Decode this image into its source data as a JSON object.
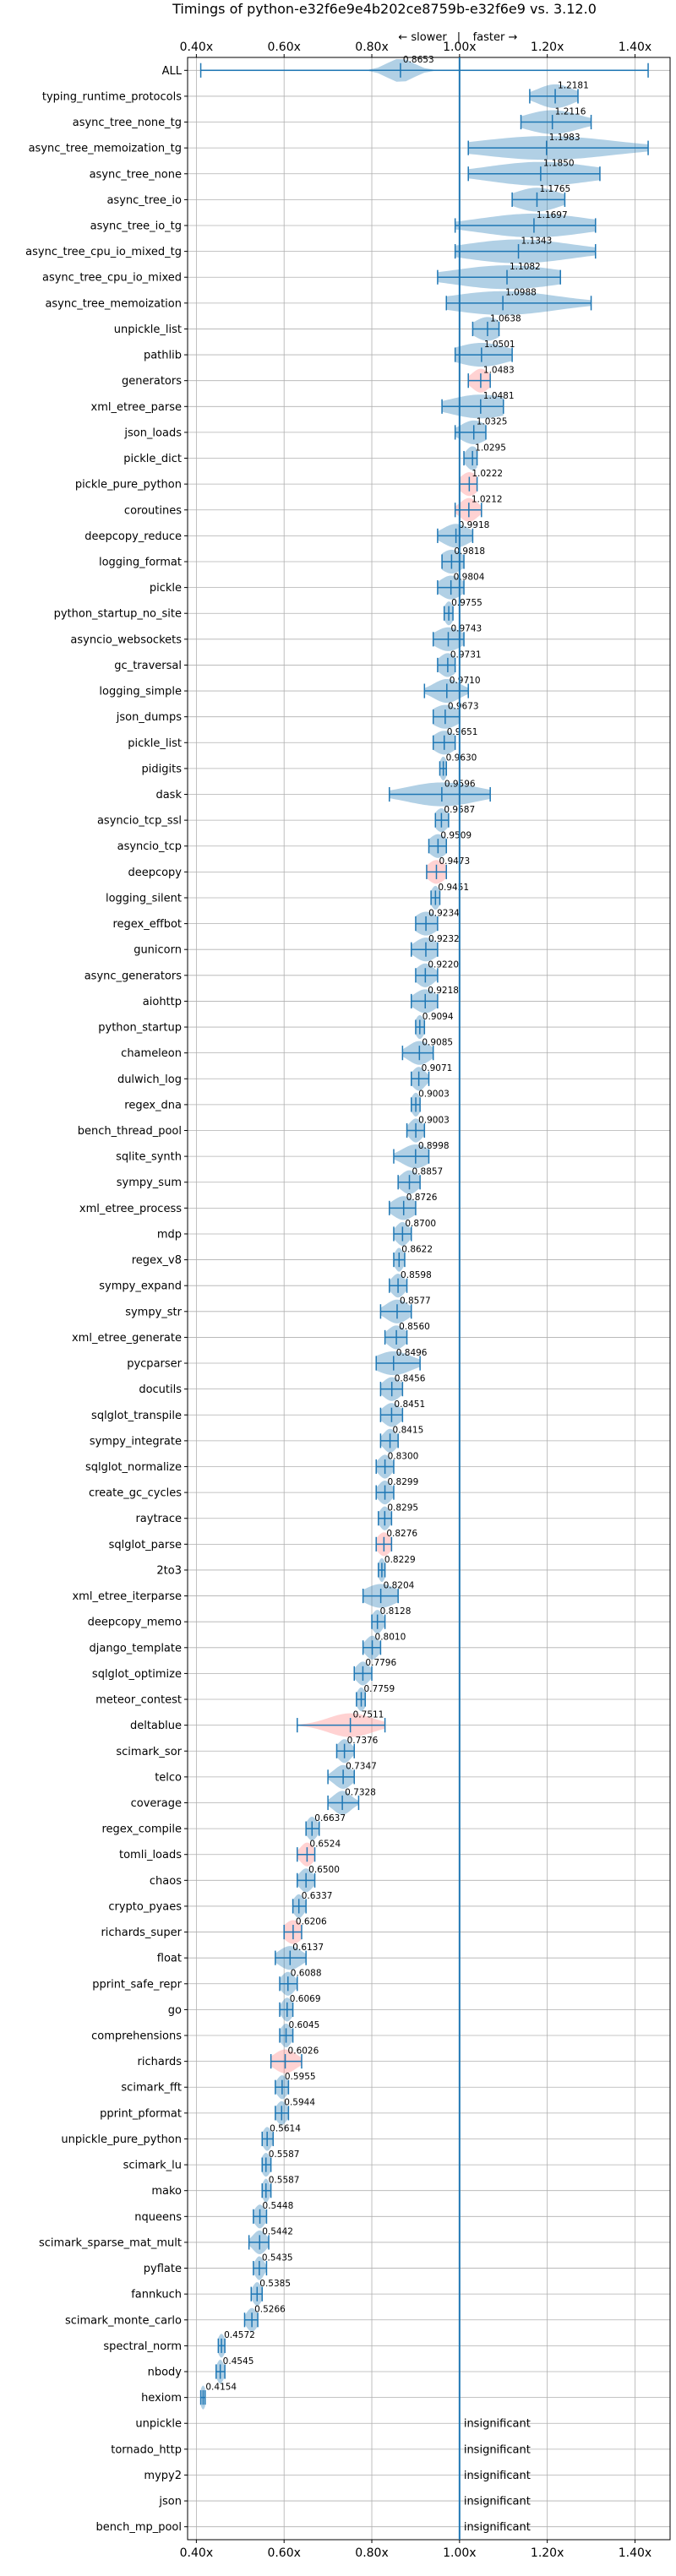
{
  "chart_data": {
    "type": "violin",
    "title": "Timings of python-e32f6e9e4b202ce8759b-e32f6e9 vs. 3.12.0",
    "direction_labels": {
      "slower": "← slower",
      "separator": "|",
      "faster": "faster →"
    },
    "x_ticks": [
      "0.40x",
      "0.60x",
      "0.80x",
      "1.00x",
      "1.20x",
      "1.40x"
    ],
    "x_tick_values": [
      0.4,
      0.6,
      0.8,
      1.0,
      1.2,
      1.4
    ],
    "xlim": [
      0.38,
      1.48
    ],
    "grid": true,
    "colors": {
      "faster": "#1f77b4",
      "slower": "#ff7f7f",
      "reference": "#1f77b4"
    },
    "insignificant_text": "insignificant",
    "benchmarks": [
      {
        "name": "ALL",
        "value": 0.8653,
        "label": "0.8653",
        "min": 0.41,
        "max": 1.43,
        "spread": 0.03,
        "color": "blue"
      },
      {
        "name": "typing_runtime_protocols",
        "value": 1.2181,
        "label": "1.2181",
        "min": 1.16,
        "max": 1.27,
        "spread": 0.04,
        "color": "blue"
      },
      {
        "name": "async_tree_none_tg",
        "value": 1.2116,
        "label": "1.2116",
        "min": 1.14,
        "max": 1.3,
        "spread": 0.06,
        "color": "blue"
      },
      {
        "name": "async_tree_memoization_tg",
        "value": 1.1983,
        "label": "1.1983",
        "min": 1.02,
        "max": 1.43,
        "spread": 0.15,
        "color": "blue"
      },
      {
        "name": "async_tree_none",
        "value": 1.185,
        "label": "1.1850",
        "min": 1.02,
        "max": 1.32,
        "spread": 0.12,
        "color": "blue"
      },
      {
        "name": "async_tree_io",
        "value": 1.1765,
        "label": "1.1765",
        "min": 1.12,
        "max": 1.24,
        "spread": 0.05,
        "color": "blue"
      },
      {
        "name": "async_tree_io_tg",
        "value": 1.1697,
        "label": "1.1697",
        "min": 0.99,
        "max": 1.31,
        "spread": 0.12,
        "color": "blue"
      },
      {
        "name": "async_tree_cpu_io_mixed_tg",
        "value": 1.1343,
        "label": "1.1343",
        "min": 0.99,
        "max": 1.31,
        "spread": 0.12,
        "color": "blue"
      },
      {
        "name": "async_tree_cpu_io_mixed",
        "value": 1.1082,
        "label": "1.1082",
        "min": 0.95,
        "max": 1.23,
        "spread": 0.12,
        "color": "blue"
      },
      {
        "name": "async_tree_memoization",
        "value": 1.0988,
        "label": "1.0988",
        "min": 0.97,
        "max": 1.3,
        "spread": 0.12,
        "color": "blue"
      },
      {
        "name": "unpickle_list",
        "value": 1.0638,
        "label": "1.0638",
        "min": 1.03,
        "max": 1.09,
        "spread": 0.03,
        "color": "blue"
      },
      {
        "name": "pathlib",
        "value": 1.0501,
        "label": "1.0501",
        "min": 0.99,
        "max": 1.12,
        "spread": 0.06,
        "color": "blue"
      },
      {
        "name": "generators",
        "value": 1.0483,
        "label": "1.0483",
        "min": 1.02,
        "max": 1.07,
        "spread": 0.02,
        "color": "red"
      },
      {
        "name": "xml_etree_parse",
        "value": 1.0481,
        "label": "1.0481",
        "min": 0.96,
        "max": 1.1,
        "spread": 0.07,
        "color": "blue"
      },
      {
        "name": "json_loads",
        "value": 1.0325,
        "label": "1.0325",
        "min": 0.99,
        "max": 1.06,
        "spread": 0.03,
        "color": "blue"
      },
      {
        "name": "pickle_dict",
        "value": 1.0295,
        "label": "1.0295",
        "min": 1.01,
        "max": 1.04,
        "spread": 0.015,
        "color": "blue"
      },
      {
        "name": "pickle_pure_python",
        "value": 1.0222,
        "label": "1.0222",
        "min": 1.0,
        "max": 1.04,
        "spread": 0.02,
        "color": "red"
      },
      {
        "name": "coroutines",
        "value": 1.0212,
        "label": "1.0212",
        "min": 0.99,
        "max": 1.05,
        "spread": 0.02,
        "color": "red"
      },
      {
        "name": "deepcopy_reduce",
        "value": 0.9918,
        "label": "0.9918",
        "min": 0.95,
        "max": 1.03,
        "spread": 0.03,
        "color": "blue"
      },
      {
        "name": "logging_format",
        "value": 0.9818,
        "label": "0.9818",
        "min": 0.96,
        "max": 1.01,
        "spread": 0.025,
        "color": "blue"
      },
      {
        "name": "pickle",
        "value": 0.9804,
        "label": "0.9804",
        "min": 0.95,
        "max": 1.01,
        "spread": 0.025,
        "color": "blue"
      },
      {
        "name": "python_startup_no_site",
        "value": 0.9755,
        "label": "0.9755",
        "min": 0.965,
        "max": 0.985,
        "spread": 0.01,
        "color": "blue"
      },
      {
        "name": "asyncio_websockets",
        "value": 0.9743,
        "label": "0.9743",
        "min": 0.94,
        "max": 1.01,
        "spread": 0.03,
        "color": "blue"
      },
      {
        "name": "gc_traversal",
        "value": 0.9731,
        "label": "0.9731",
        "min": 0.95,
        "max": 0.99,
        "spread": 0.02,
        "color": "blue"
      },
      {
        "name": "logging_simple",
        "value": 0.971,
        "label": "0.9710",
        "min": 0.92,
        "max": 1.02,
        "spread": 0.03,
        "color": "blue"
      },
      {
        "name": "json_dumps",
        "value": 0.9673,
        "label": "0.9673",
        "min": 0.94,
        "max": 1.0,
        "spread": 0.03,
        "color": "blue"
      },
      {
        "name": "pickle_list",
        "value": 0.9651,
        "label": "0.9651",
        "min": 0.94,
        "max": 0.99,
        "spread": 0.025,
        "color": "blue"
      },
      {
        "name": "pidigits",
        "value": 0.963,
        "label": "0.9630",
        "min": 0.955,
        "max": 0.97,
        "spread": 0.008,
        "color": "blue"
      },
      {
        "name": "dask",
        "value": 0.9596,
        "label": "0.9596",
        "min": 0.84,
        "max": 1.07,
        "spread": 0.08,
        "color": "blue"
      },
      {
        "name": "asyncio_tcp_ssl",
        "value": 0.9587,
        "label": "0.9587",
        "min": 0.945,
        "max": 0.975,
        "spread": 0.015,
        "color": "blue"
      },
      {
        "name": "asyncio_tcp",
        "value": 0.9509,
        "label": "0.9509",
        "min": 0.93,
        "max": 0.97,
        "spread": 0.02,
        "color": "blue"
      },
      {
        "name": "deepcopy",
        "value": 0.9473,
        "label": "0.9473",
        "min": 0.925,
        "max": 0.97,
        "spread": 0.02,
        "color": "red"
      },
      {
        "name": "logging_silent",
        "value": 0.9451,
        "label": "0.9451",
        "min": 0.935,
        "max": 0.955,
        "spread": 0.01,
        "color": "blue"
      },
      {
        "name": "regex_effbot",
        "value": 0.9234,
        "label": "0.9234",
        "min": 0.9,
        "max": 0.95,
        "spread": 0.025,
        "color": "blue"
      },
      {
        "name": "gunicorn",
        "value": 0.9232,
        "label": "0.9232",
        "min": 0.89,
        "max": 0.95,
        "spread": 0.025,
        "color": "blue"
      },
      {
        "name": "async_generators",
        "value": 0.922,
        "label": "0.9220",
        "min": 0.9,
        "max": 0.95,
        "spread": 0.02,
        "color": "blue"
      },
      {
        "name": "aiohttp",
        "value": 0.9218,
        "label": "0.9218",
        "min": 0.89,
        "max": 0.95,
        "spread": 0.025,
        "color": "blue"
      },
      {
        "name": "python_startup",
        "value": 0.9094,
        "label": "0.9094",
        "min": 0.9,
        "max": 0.92,
        "spread": 0.01,
        "color": "blue"
      },
      {
        "name": "chameleon",
        "value": 0.9085,
        "label": "0.9085",
        "min": 0.87,
        "max": 0.94,
        "spread": 0.025,
        "color": "blue"
      },
      {
        "name": "dulwich_log",
        "value": 0.9071,
        "label": "0.9071",
        "min": 0.89,
        "max": 0.93,
        "spread": 0.015,
        "color": "blue"
      },
      {
        "name": "regex_dna",
        "value": 0.9003,
        "label": "0.9003",
        "min": 0.89,
        "max": 0.91,
        "spread": 0.01,
        "color": "blue"
      },
      {
        "name": "bench_thread_pool",
        "value": 0.9003,
        "label": "0.9003",
        "min": 0.88,
        "max": 0.92,
        "spread": 0.015,
        "color": "blue"
      },
      {
        "name": "sqlite_synth",
        "value": 0.8998,
        "label": "0.8998",
        "min": 0.85,
        "max": 0.93,
        "spread": 0.03,
        "color": "blue"
      },
      {
        "name": "sympy_sum",
        "value": 0.8857,
        "label": "0.8857",
        "min": 0.86,
        "max": 0.91,
        "spread": 0.02,
        "color": "blue"
      },
      {
        "name": "xml_etree_process",
        "value": 0.8726,
        "label": "0.8726",
        "min": 0.84,
        "max": 0.9,
        "spread": 0.025,
        "color": "blue"
      },
      {
        "name": "mdp",
        "value": 0.87,
        "label": "0.8700",
        "min": 0.85,
        "max": 0.89,
        "spread": 0.015,
        "color": "blue"
      },
      {
        "name": "regex_v8",
        "value": 0.8622,
        "label": "0.8622",
        "min": 0.85,
        "max": 0.875,
        "spread": 0.01,
        "color": "blue"
      },
      {
        "name": "sympy_expand",
        "value": 0.8598,
        "label": "0.8598",
        "min": 0.84,
        "max": 0.88,
        "spread": 0.015,
        "color": "blue"
      },
      {
        "name": "sympy_str",
        "value": 0.8577,
        "label": "0.8577",
        "min": 0.82,
        "max": 0.89,
        "spread": 0.025,
        "color": "blue"
      },
      {
        "name": "xml_etree_generate",
        "value": 0.856,
        "label": "0.8560",
        "min": 0.83,
        "max": 0.88,
        "spread": 0.02,
        "color": "blue"
      },
      {
        "name": "pycparser",
        "value": 0.8496,
        "label": "0.8496",
        "min": 0.81,
        "max": 0.91,
        "spread": 0.04,
        "color": "blue"
      },
      {
        "name": "docutils",
        "value": 0.8456,
        "label": "0.8456",
        "min": 0.82,
        "max": 0.87,
        "spread": 0.02,
        "color": "blue"
      },
      {
        "name": "sqlglot_transpile",
        "value": 0.8451,
        "label": "0.8451",
        "min": 0.82,
        "max": 0.87,
        "spread": 0.02,
        "color": "blue"
      },
      {
        "name": "sympy_integrate",
        "value": 0.8415,
        "label": "0.8415",
        "min": 0.82,
        "max": 0.86,
        "spread": 0.015,
        "color": "blue"
      },
      {
        "name": "sqlglot_normalize",
        "value": 0.83,
        "label": "0.8300",
        "min": 0.81,
        "max": 0.85,
        "spread": 0.015,
        "color": "blue"
      },
      {
        "name": "create_gc_cycles",
        "value": 0.8299,
        "label": "0.8299",
        "min": 0.81,
        "max": 0.85,
        "spread": 0.015,
        "color": "blue"
      },
      {
        "name": "raytrace",
        "value": 0.8295,
        "label": "0.8295",
        "min": 0.815,
        "max": 0.845,
        "spread": 0.012,
        "color": "blue"
      },
      {
        "name": "sqlglot_parse",
        "value": 0.8276,
        "label": "0.8276",
        "min": 0.81,
        "max": 0.845,
        "spread": 0.015,
        "color": "red"
      },
      {
        "name": "2to3",
        "value": 0.8229,
        "label": "0.8229",
        "min": 0.815,
        "max": 0.83,
        "spread": 0.008,
        "color": "blue"
      },
      {
        "name": "xml_etree_iterparse",
        "value": 0.8204,
        "label": "0.8204",
        "min": 0.78,
        "max": 0.86,
        "spread": 0.035,
        "color": "blue"
      },
      {
        "name": "deepcopy_memo",
        "value": 0.8128,
        "label": "0.8128",
        "min": 0.8,
        "max": 0.83,
        "spread": 0.012,
        "color": "blue"
      },
      {
        "name": "django_template",
        "value": 0.801,
        "label": "0.8010",
        "min": 0.78,
        "max": 0.82,
        "spread": 0.015,
        "color": "blue"
      },
      {
        "name": "sqlglot_optimize",
        "value": 0.7796,
        "label": "0.7796",
        "min": 0.76,
        "max": 0.8,
        "spread": 0.015,
        "color": "blue"
      },
      {
        "name": "meteor_contest",
        "value": 0.7759,
        "label": "0.7759",
        "min": 0.765,
        "max": 0.785,
        "spread": 0.01,
        "color": "blue"
      },
      {
        "name": "deltablue",
        "value": 0.7511,
        "label": "0.7511",
        "min": 0.63,
        "max": 0.83,
        "spread": 0.05,
        "color": "red"
      },
      {
        "name": "scimark_sor",
        "value": 0.7376,
        "label": "0.7376",
        "min": 0.72,
        "max": 0.76,
        "spread": 0.015,
        "color": "blue"
      },
      {
        "name": "telco",
        "value": 0.7347,
        "label": "0.7347",
        "min": 0.7,
        "max": 0.76,
        "spread": 0.02,
        "color": "blue"
      },
      {
        "name": "coverage",
        "value": 0.7328,
        "label": "0.7328",
        "min": 0.7,
        "max": 0.77,
        "spread": 0.02,
        "color": "blue"
      },
      {
        "name": "regex_compile",
        "value": 0.6637,
        "label": "0.6637",
        "min": 0.65,
        "max": 0.68,
        "spread": 0.012,
        "color": "blue"
      },
      {
        "name": "tomli_loads",
        "value": 0.6524,
        "label": "0.6524",
        "min": 0.63,
        "max": 0.67,
        "spread": 0.015,
        "color": "red"
      },
      {
        "name": "chaos",
        "value": 0.65,
        "label": "0.6500",
        "min": 0.63,
        "max": 0.67,
        "spread": 0.015,
        "color": "blue"
      },
      {
        "name": "crypto_pyaes",
        "value": 0.6337,
        "label": "0.6337",
        "min": 0.62,
        "max": 0.65,
        "spread": 0.012,
        "color": "blue"
      },
      {
        "name": "richards_super",
        "value": 0.6206,
        "label": "0.6206",
        "min": 0.6,
        "max": 0.64,
        "spread": 0.02,
        "color": "red"
      },
      {
        "name": "float",
        "value": 0.6137,
        "label": "0.6137",
        "min": 0.58,
        "max": 0.65,
        "spread": 0.025,
        "color": "blue"
      },
      {
        "name": "pprint_safe_repr",
        "value": 0.6088,
        "label": "0.6088",
        "min": 0.59,
        "max": 0.63,
        "spread": 0.015,
        "color": "blue"
      },
      {
        "name": "go",
        "value": 0.6069,
        "label": "0.6069",
        "min": 0.59,
        "max": 0.62,
        "spread": 0.012,
        "color": "blue"
      },
      {
        "name": "comprehensions",
        "value": 0.6045,
        "label": "0.6045",
        "min": 0.59,
        "max": 0.62,
        "spread": 0.012,
        "color": "blue"
      },
      {
        "name": "richards",
        "value": 0.6026,
        "label": "0.6026",
        "min": 0.57,
        "max": 0.64,
        "spread": 0.025,
        "color": "red"
      },
      {
        "name": "scimark_fft",
        "value": 0.5955,
        "label": "0.5955",
        "min": 0.58,
        "max": 0.61,
        "spread": 0.012,
        "color": "blue"
      },
      {
        "name": "pprint_pformat",
        "value": 0.5944,
        "label": "0.5944",
        "min": 0.58,
        "max": 0.61,
        "spread": 0.012,
        "color": "blue"
      },
      {
        "name": "unpickle_pure_python",
        "value": 0.5614,
        "label": "0.5614",
        "min": 0.55,
        "max": 0.575,
        "spread": 0.01,
        "color": "blue"
      },
      {
        "name": "scimark_lu",
        "value": 0.5587,
        "label": "0.5587",
        "min": 0.55,
        "max": 0.57,
        "spread": 0.01,
        "color": "blue"
      },
      {
        "name": "mako",
        "value": 0.5587,
        "label": "0.5587",
        "min": 0.55,
        "max": 0.57,
        "spread": 0.008,
        "color": "blue"
      },
      {
        "name": "nqueens",
        "value": 0.5448,
        "label": "0.5448",
        "min": 0.53,
        "max": 0.56,
        "spread": 0.012,
        "color": "blue"
      },
      {
        "name": "scimark_sparse_mat_mult",
        "value": 0.5442,
        "label": "0.5442",
        "min": 0.52,
        "max": 0.565,
        "spread": 0.015,
        "color": "blue"
      },
      {
        "name": "pyflate",
        "value": 0.5435,
        "label": "0.5435",
        "min": 0.53,
        "max": 0.56,
        "spread": 0.01,
        "color": "blue"
      },
      {
        "name": "fannkuch",
        "value": 0.5385,
        "label": "0.5385",
        "min": 0.525,
        "max": 0.55,
        "spread": 0.01,
        "color": "blue"
      },
      {
        "name": "scimark_monte_carlo",
        "value": 0.5266,
        "label": "0.5266",
        "min": 0.51,
        "max": 0.54,
        "spread": 0.012,
        "color": "blue"
      },
      {
        "name": "spectral_norm",
        "value": 0.4572,
        "label": "0.4572",
        "min": 0.45,
        "max": 0.465,
        "spread": 0.008,
        "color": "blue"
      },
      {
        "name": "nbody",
        "value": 0.4545,
        "label": "0.4545",
        "min": 0.445,
        "max": 0.465,
        "spread": 0.008,
        "color": "blue"
      },
      {
        "name": "hexiom",
        "value": 0.4154,
        "label": "0.4154",
        "min": 0.41,
        "max": 0.42,
        "spread": 0.006,
        "color": "blue"
      },
      {
        "name": "unpickle",
        "insignificant": true
      },
      {
        "name": "tornado_http",
        "insignificant": true
      },
      {
        "name": "mypy2",
        "insignificant": true
      },
      {
        "name": "json",
        "insignificant": true
      },
      {
        "name": "bench_mp_pool",
        "insignificant": true
      }
    ]
  }
}
